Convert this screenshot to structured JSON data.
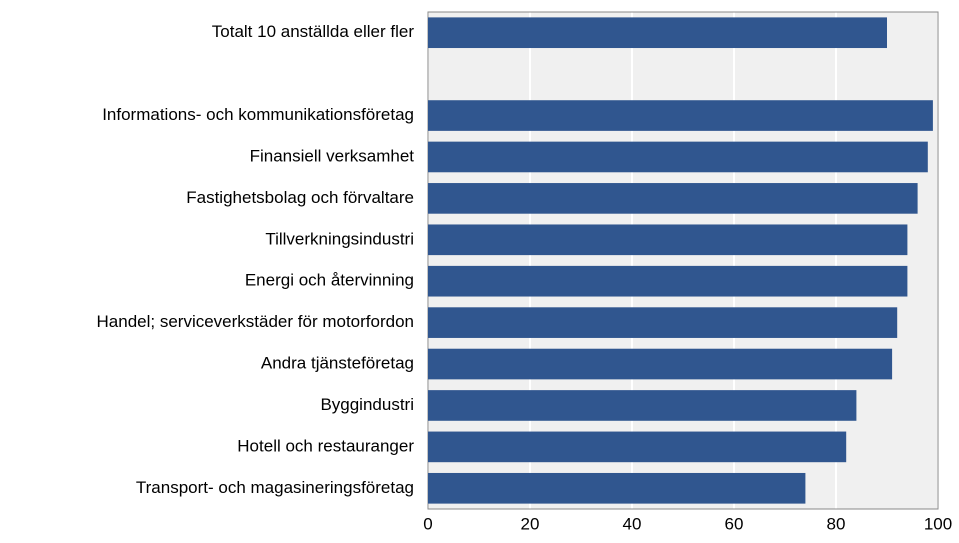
{
  "chart_data": {
    "type": "bar",
    "orientation": "horizontal",
    "categories": [
      "Totalt 10 anställda eller fler",
      null,
      "Informations- och kommunikationsföretag",
      "Finansiell verksamhet",
      "Fastighetsbolag och förvaltare",
      "Tillverkningsindustri",
      "Energi och återvinning",
      "Handel; serviceverkstäder för motorfordon",
      "Andra tjänsteföretag",
      "Byggindustri",
      "Hotell och restauranger",
      "Transport- och magasineringsföretag"
    ],
    "values": [
      90,
      null,
      99,
      98,
      96,
      94,
      94,
      92,
      91,
      84,
      82,
      74
    ],
    "color": "#30568f",
    "xlim": [
      0,
      100
    ],
    "xticks": [
      0,
      20,
      40,
      60,
      80,
      100
    ],
    "grid": true
  }
}
